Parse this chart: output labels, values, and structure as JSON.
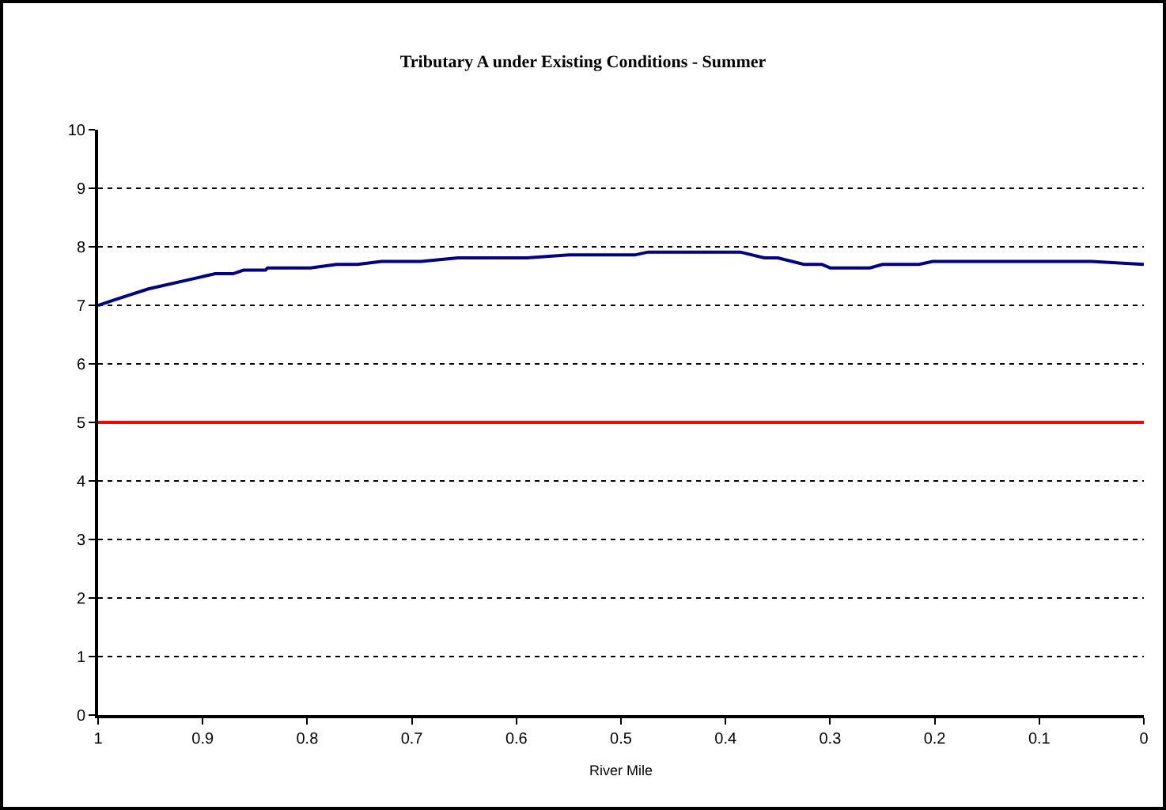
{
  "chart_data": {
    "type": "line",
    "title": "Tributary A under Existing Conditions - Summer",
    "xlabel": "River Mile",
    "x": [
      1.0,
      0.985,
      0.952,
      0.888,
      0.871,
      0.861,
      0.84,
      0.838,
      0.797,
      0.772,
      0.752,
      0.729,
      0.691,
      0.656,
      0.59,
      0.55,
      0.52,
      0.487,
      0.474,
      0.386,
      0.363,
      0.35,
      0.325,
      0.308,
      0.3,
      0.262,
      0.25,
      0.215,
      0.202,
      0.05,
      0.0
    ],
    "series": [
      {
        "color": "#000080",
        "values": [
          7.0,
          7.09,
          7.28,
          7.54,
          7.54,
          7.6,
          7.6,
          7.64,
          7.64,
          7.7,
          7.7,
          7.75,
          7.75,
          7.81,
          7.81,
          7.86,
          7.86,
          7.86,
          7.91,
          7.91,
          7.81,
          7.81,
          7.7,
          7.7,
          7.64,
          7.64,
          7.7,
          7.7,
          7.75,
          7.75,
          7.7
        ]
      }
    ],
    "xlim": [
      1,
      0
    ],
    "xticks": [
      1,
      0.9,
      0.8,
      0.7,
      0.6,
      0.5,
      0.4,
      0.3,
      0.2,
      0.1,
      0
    ],
    "ylim": [
      0,
      10
    ],
    "yticks": [
      0,
      1,
      2,
      3,
      4,
      5,
      6,
      7,
      8,
      9,
      10
    ],
    "grid": "y",
    "marker": "none",
    "line_style": "solid",
    "ref_lines": [
      {
        "axis": "y",
        "value": 5,
        "color": "#ff0000"
      }
    ]
  }
}
